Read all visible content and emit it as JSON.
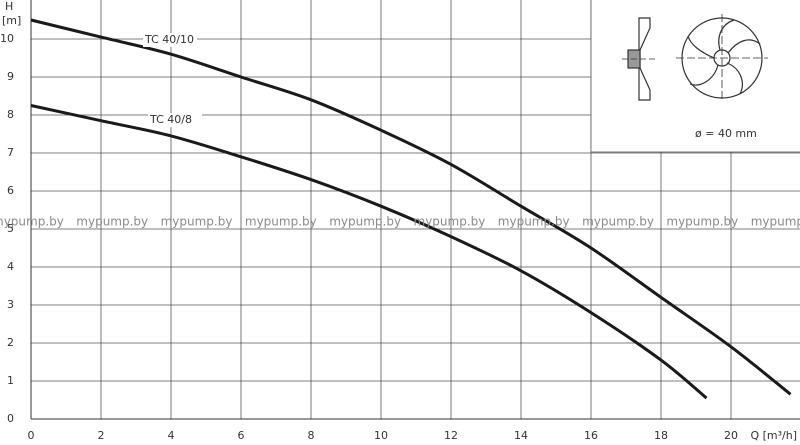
{
  "chart_data": {
    "type": "line",
    "y_label": "H",
    "y_unit": "[m]",
    "x_label": "Q [m³/h]",
    "annotation": "ø = 40 mm",
    "watermark": "mypump.by",
    "xlim": [
      0,
      22
    ],
    "ylim": [
      0,
      11
    ],
    "xticks": [
      0,
      2,
      4,
      6,
      8,
      10,
      12,
      14,
      16,
      18,
      20
    ],
    "yticks": [
      0,
      1,
      2,
      3,
      4,
      5,
      6,
      7,
      8,
      9,
      10
    ],
    "grid": true,
    "series": [
      {
        "name": "TC 40/10",
        "color": "#1a1a1a",
        "x": [
          0,
          2,
          4,
          6,
          8,
          10,
          12,
          14,
          16,
          18,
          20,
          21.7
        ],
        "values": [
          10.5,
          10.05,
          9.6,
          9.0,
          8.4,
          7.6,
          6.7,
          5.6,
          4.5,
          3.2,
          1.9,
          0.65
        ]
      },
      {
        "name": "TC 40/8",
        "color": "#1a1a1a",
        "x": [
          0,
          2,
          4,
          6,
          8,
          10,
          12,
          14,
          16,
          18,
          19.3
        ],
        "values": [
          8.25,
          7.85,
          7.45,
          6.9,
          6.3,
          5.6,
          4.8,
          3.9,
          2.8,
          1.55,
          0.55
        ]
      }
    ]
  }
}
